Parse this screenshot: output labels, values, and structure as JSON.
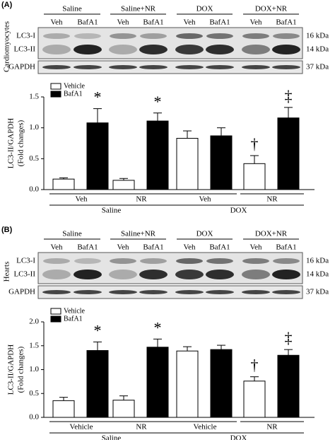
{
  "panels": [
    {
      "label": "(A)",
      "side_label": "Cardiomyocytes",
      "groups": [
        "Saline",
        "Saline+NR",
        "DOX",
        "DOX+NR"
      ],
      "lanes": [
        "Veh",
        "BafA1",
        "Veh",
        "BafA1",
        "Veh",
        "BafA1",
        "Veh",
        "BafA1"
      ],
      "bands": [
        "LC3-I",
        "LC3-II",
        "GAPDH"
      ],
      "sizes": [
        "16 kDa",
        "14 kDa",
        "37 kDa"
      ]
    },
    {
      "label": "(B)",
      "side_label": "Hearts",
      "groups": [
        "Saline",
        "Saline+NR",
        "DOX",
        "DOX+NR"
      ],
      "lanes": [
        "Veh",
        "BafA1",
        "Veh",
        "BafA1",
        "Veh",
        "BafA1",
        "Veh",
        "BafA1"
      ],
      "bands": [
        "LC3-I",
        "LC3-II",
        "GAPDH"
      ],
      "sizes": [
        "16 kDa",
        "14 kDa",
        "37 kDa"
      ]
    }
  ],
  "chart_data": [
    {
      "type": "bar",
      "y_label": [
        "LC3-II/GAPDH",
        "(Fold changes)"
      ],
      "categories": [
        "Veh",
        "NR",
        "Veh",
        "NR"
      ],
      "groups": [
        "Saline",
        "DOX"
      ],
      "series": [
        {
          "name": "Vehicle",
          "color": "#ffffff",
          "values": [
            0.17,
            0.15,
            0.83,
            0.42
          ],
          "errors": [
            0.02,
            0.03,
            0.12,
            0.13
          ],
          "marks": [
            null,
            null,
            null,
            "†"
          ]
        },
        {
          "name": "BafA1",
          "color": "#000000",
          "values": [
            1.08,
            1.11,
            0.87,
            1.16
          ],
          "errors": [
            0.23,
            0.13,
            0.13,
            0.17
          ],
          "marks": [
            "*",
            "*",
            null,
            "‡"
          ]
        }
      ],
      "ylim": [
        0,
        1.5
      ],
      "yticks": [
        {
          "value": 0,
          "label": "0.0"
        },
        0.5,
        {
          "value": 1,
          "label": "1.0"
        },
        1.5
      ],
      "legend": "top-left"
    },
    {
      "type": "bar",
      "y_label": [
        "LC3-II/GAPDH",
        "(Fold changes)"
      ],
      "categories": [
        "Vehicle",
        "NR",
        "Vehicle",
        "NR"
      ],
      "groups": [
        "Saline",
        "DOX"
      ],
      "series": [
        {
          "name": "Vehicle",
          "color": "#ffffff",
          "values": [
            0.35,
            0.36,
            1.39,
            0.76
          ],
          "errors": [
            0.07,
            0.09,
            0.09,
            0.09
          ],
          "marks": [
            null,
            null,
            null,
            "†"
          ]
        },
        {
          "name": "BafA1",
          "color": "#000000",
          "values": [
            1.4,
            1.47,
            1.42,
            1.3
          ],
          "errors": [
            0.18,
            0.17,
            0.09,
            0.12
          ],
          "marks": [
            "*",
            "*",
            null,
            "‡"
          ]
        }
      ],
      "ylim": [
        0,
        2
      ],
      "yticks": [
        {
          "value": 0,
          "label": "0.0"
        },
        0.5,
        {
          "value": 1,
          "label": "1.0"
        },
        1.5,
        {
          "value": 2,
          "label": "2.0"
        }
      ],
      "legend": "top-left"
    }
  ]
}
